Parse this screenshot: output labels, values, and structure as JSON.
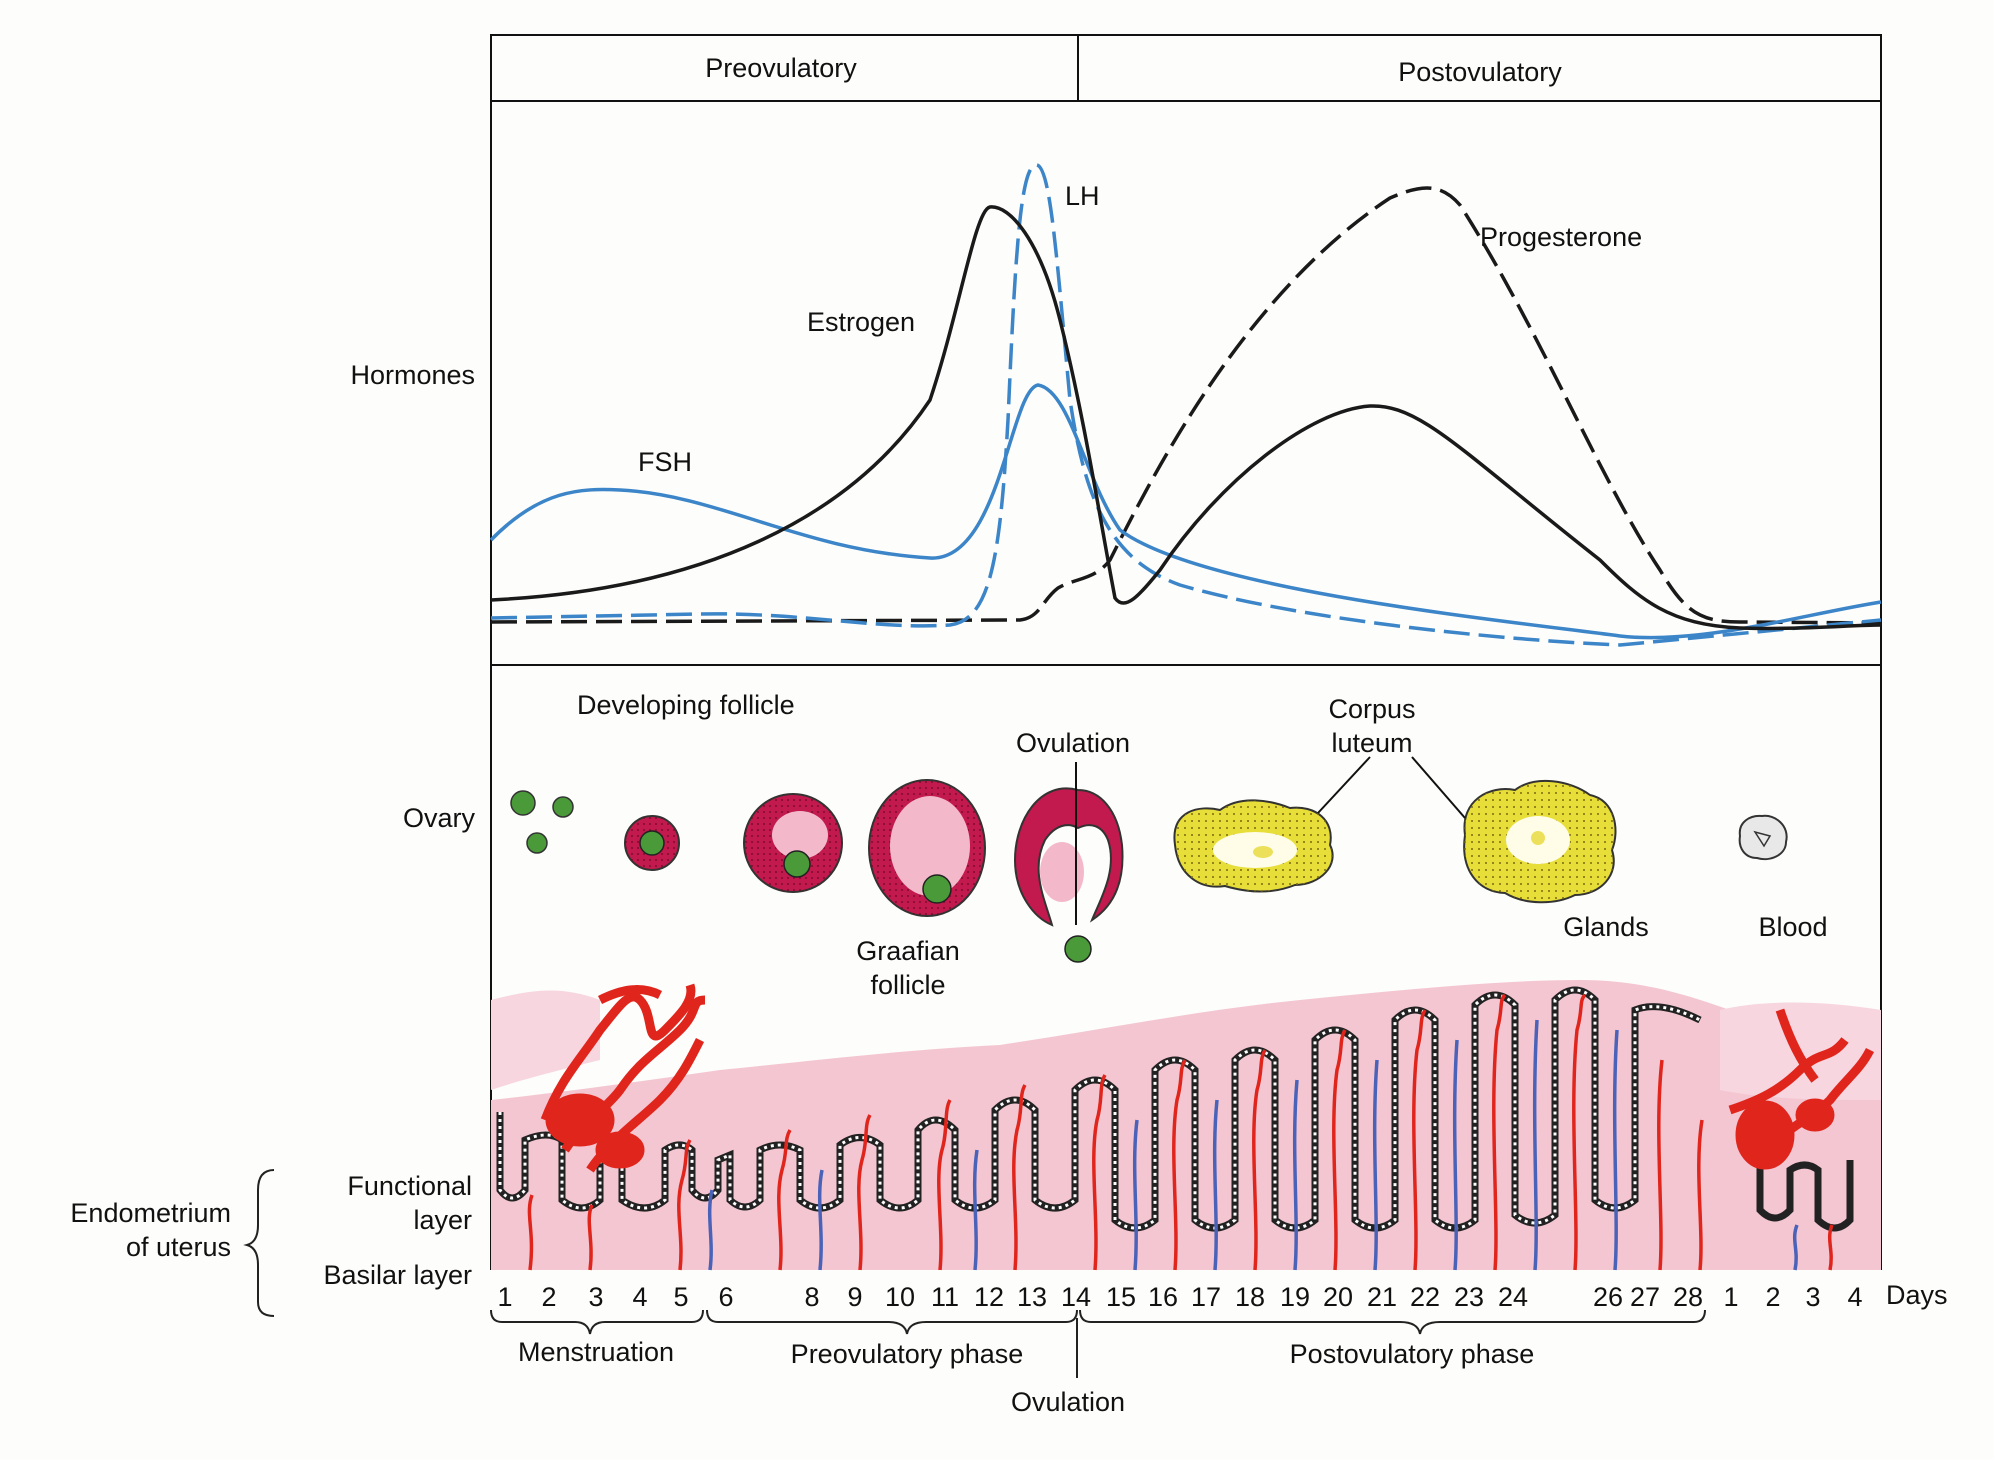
{
  "header": {
    "preovulatory": "Preovulatory",
    "postovulatory": "Postovulatory"
  },
  "sections": {
    "hormones": "Hormones",
    "ovary": "Ovary"
  },
  "hormone_labels": {
    "lh": "LH",
    "estrogen": "Estrogen",
    "fsh": "FSH",
    "progesterone": "Progesterone"
  },
  "ovary_labels": {
    "developing_follicle": "Developing follicle",
    "ovulation": "Ovulation",
    "corpus_luteum": "Corpus\nluteum",
    "graafian_follicle": "Graafian\nfollicle"
  },
  "uterus_labels": {
    "glands": "Glands",
    "blood": "Blood",
    "functional_layer": "Functional\nlayer",
    "endometrium": "Endometrium\nof uterus",
    "basilar_layer": "Basilar layer"
  },
  "days": [
    "1",
    "2",
    "3",
    "4",
    "5",
    "6",
    "8",
    "9",
    "10",
    "11",
    "12",
    "13",
    "14",
    "15",
    "16",
    "17",
    "18",
    "19",
    "20",
    "21",
    "22",
    "23",
    "24",
    "26",
    "27",
    "28",
    "1",
    "2",
    "3",
    "4"
  ],
  "days_label": "Days",
  "phases": {
    "menstruation": "Menstruation",
    "preovulatory_phase": "Preovulatory phase",
    "postovulatory_phase": "Postovulatory phase",
    "ovulation": "Ovulation"
  },
  "colors": {
    "fsh_lh": "#3b85c8",
    "estrogen_progesterone": "#1a1a1a",
    "follicle": "#c2194f",
    "follicle_inner": "#f3b9cb",
    "oocyte": "#4a9a3a",
    "corpus_luteum": "#e8de3a",
    "endometrium": "#f4c6d2",
    "blood": "#e0261c",
    "vein": "#4a63b8"
  }
}
